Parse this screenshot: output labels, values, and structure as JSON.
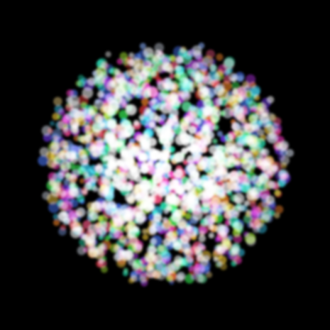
{
  "scene": {
    "background_color": "#000000",
    "particle_palette": [
      "#ff3b3b",
      "#ff8a2a",
      "#ffd23a",
      "#b9ff3a",
      "#3aff5a",
      "#2affc8",
      "#3ad8ff",
      "#4a7bff",
      "#7a3aff",
      "#c83aff",
      "#ff3ac8",
      "#ff5a8a",
      "#ffffff",
      "#ffffff",
      "#e8f0ff",
      "#6affb0",
      "#ffe08a",
      "#8ab0ff"
    ],
    "particle_count": 1700
  }
}
